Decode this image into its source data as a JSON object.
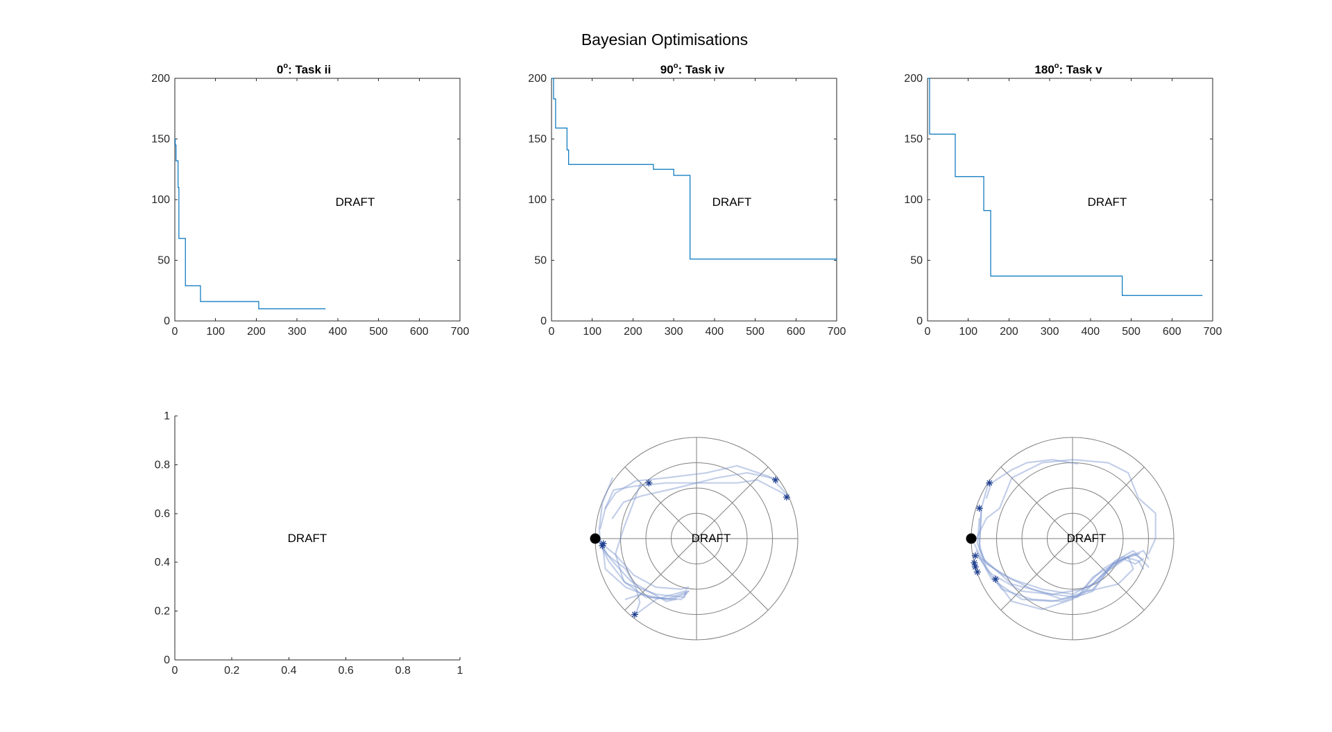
{
  "figure": {
    "title": "Bayesian Optimisations",
    "watermark": "DRAFT",
    "colors": {
      "line": "#0072BD",
      "trajectory": "#7A95CF",
      "marker": "#1F3F8F",
      "axes": "#262626",
      "start_dot": "#000000"
    }
  },
  "chart_data": [
    {
      "type": "line",
      "title_angle": "0",
      "title_task": ": Task ii",
      "xlim": [
        0,
        700
      ],
      "ylim": [
        0,
        200
      ],
      "xticks": [
        0,
        100,
        200,
        300,
        400,
        500,
        600,
        700
      ],
      "yticks": [
        0,
        50,
        100,
        150,
        200
      ],
      "step": true,
      "x": [
        0,
        1,
        3,
        8,
        10,
        26,
        63,
        206,
        370
      ],
      "y": [
        150,
        145,
        132,
        110,
        68,
        29,
        16,
        10,
        10
      ]
    },
    {
      "type": "line",
      "title_angle": "90",
      "title_task": ": Task iv",
      "xlim": [
        0,
        700
      ],
      "ylim": [
        0,
        200
      ],
      "xticks": [
        0,
        100,
        200,
        300,
        400,
        500,
        600,
        700
      ],
      "yticks": [
        0,
        50,
        100,
        150,
        200
      ],
      "step": true,
      "x": [
        0,
        5,
        10,
        38,
        42,
        250,
        300,
        340,
        700
      ],
      "y": [
        200,
        183,
        159,
        141,
        129,
        125,
        120,
        51,
        50
      ]
    },
    {
      "type": "line",
      "title_angle": "180",
      "title_task": ": Task v",
      "xlim": [
        0,
        700
      ],
      "ylim": [
        0,
        200
      ],
      "xticks": [
        0,
        100,
        200,
        300,
        400,
        500,
        600,
        700
      ],
      "yticks": [
        0,
        50,
        100,
        150,
        200
      ],
      "step": true,
      "x": [
        0,
        5,
        68,
        138,
        155,
        478,
        675
      ],
      "y": [
        200,
        154,
        119,
        91,
        37,
        21,
        21
      ]
    },
    {
      "type": "line",
      "xlim": [
        0,
        1
      ],
      "ylim": [
        0,
        1
      ],
      "xticks": [
        0,
        0.2,
        0.4,
        0.6,
        0.8,
        1
      ],
      "yticks": [
        0,
        0.2,
        0.4,
        0.6,
        0.8,
        1
      ],
      "xtick_labels": [
        "0",
        "0.2",
        "0.4",
        "0.6",
        "0.8",
        "1"
      ],
      "ytick_labels": [
        "0",
        "0.2",
        "0.4",
        "0.6",
        "0.8",
        "1"
      ],
      "x": [],
      "y": []
    },
    {
      "type": "polar-scatter",
      "start": [
        -1,
        0
      ],
      "rlim": [
        0,
        1
      ],
      "rings": [
        0.25,
        0.5,
        0.75,
        1
      ],
      "spokes_deg": [
        0,
        45,
        90,
        135
      ],
      "trajectories": [
        [
          [
            -0.83,
            0.6
          ],
          [
            -0.93,
            0.35
          ],
          [
            -0.96,
            0.1
          ],
          [
            -0.95,
            -0.05
          ],
          [
            -0.87,
            -0.22
          ],
          [
            -0.7,
            -0.44
          ],
          [
            -0.4,
            -0.55
          ],
          [
            -0.12,
            -0.58
          ],
          [
            -0.1,
            -0.5
          ]
        ],
        [
          [
            -0.96,
            -0.03
          ],
          [
            -0.85,
            -0.2
          ],
          [
            -0.65,
            -0.42
          ],
          [
            -0.3,
            -0.62
          ],
          [
            -0.2,
            -0.6
          ]
        ],
        [
          [
            -0.97,
            -0.02
          ],
          [
            -0.88,
            -0.16
          ],
          [
            -0.7,
            -0.3
          ],
          [
            -0.6,
            -0.48
          ],
          [
            -0.56,
            -0.63
          ],
          [
            -0.6,
            -0.75
          ],
          [
            -0.4,
            -0.6
          ],
          [
            -0.12,
            -0.52
          ]
        ],
        [
          [
            -0.55,
            0.55
          ],
          [
            -0.72,
            0.1
          ],
          [
            -0.8,
            -0.15
          ],
          [
            -0.72,
            -0.42
          ],
          [
            -0.5,
            -0.58
          ],
          [
            -0.15,
            -0.6
          ],
          [
            -0.08,
            -0.52
          ]
        ],
        [
          [
            -0.95,
            0.0
          ],
          [
            -0.92,
            -0.12
          ],
          [
            -0.9,
            -0.3
          ],
          [
            -0.7,
            -0.48
          ],
          [
            -0.45,
            -0.58
          ],
          [
            -0.25,
            -0.6
          ],
          [
            -0.1,
            -0.54
          ]
        ],
        [
          [
            -0.95,
            -0.04
          ],
          [
            -0.8,
            -0.16
          ],
          [
            -0.62,
            -0.36
          ],
          [
            -0.4,
            -0.48
          ],
          [
            -0.15,
            -0.5
          ],
          [
            -0.08,
            -0.48
          ]
        ],
        [
          [
            -0.7,
            -0.6
          ],
          [
            -0.55,
            -0.55
          ],
          [
            -0.3,
            -0.6
          ],
          [
            -0.08,
            -0.52
          ]
        ],
        [
          [
            -0.83,
            0.2
          ],
          [
            -0.72,
            0.36
          ],
          [
            -0.55,
            0.42
          ],
          [
            -0.2,
            0.5
          ],
          [
            0.2,
            0.6
          ],
          [
            0.5,
            0.65
          ],
          [
            0.74,
            0.6
          ],
          [
            0.88,
            0.45
          ]
        ],
        [
          [
            -0.9,
            0.3
          ],
          [
            -0.8,
            0.45
          ],
          [
            -0.6,
            0.57
          ],
          [
            -0.3,
            0.6
          ],
          [
            0.1,
            0.65
          ],
          [
            0.4,
            0.72
          ],
          [
            0.7,
            0.62
          ],
          [
            0.78,
            0.58
          ]
        ],
        [
          [
            -0.95,
            0.1
          ],
          [
            -0.9,
            0.3
          ],
          [
            -0.82,
            0.48
          ],
          [
            -0.6,
            0.52
          ],
          [
            -0.3,
            0.55
          ],
          [
            0.05,
            0.55
          ],
          [
            0.4,
            0.55
          ],
          [
            0.6,
            0.58
          ],
          [
            0.85,
            0.45
          ],
          [
            0.9,
            0.4
          ]
        ]
      ],
      "markers": [
        [
          -0.47,
          0.55
        ],
        [
          0.78,
          0.58
        ],
        [
          0.89,
          0.41
        ],
        [
          -0.92,
          -0.05
        ],
        [
          -0.93,
          -0.07
        ],
        [
          -0.61,
          -0.75
        ]
      ]
    },
    {
      "type": "polar-scatter",
      "start": [
        -1,
        0
      ],
      "rlim": [
        0,
        1
      ],
      "rings": [
        0.25,
        0.5,
        0.75,
        1
      ],
      "spokes_deg": [
        0,
        45,
        90,
        135
      ],
      "trajectories": [
        [
          [
            -0.83,
            0.55
          ],
          [
            -0.9,
            0.3
          ],
          [
            -0.92,
            -0.05
          ],
          [
            -0.88,
            -0.2
          ],
          [
            -0.6,
            -0.45
          ],
          [
            -0.2,
            -0.55
          ],
          [
            0.05,
            -0.58
          ],
          [
            0.2,
            -0.38
          ],
          [
            0.5,
            -0.2
          ],
          [
            0.62,
            -0.25
          ],
          [
            0.7,
            -0.2
          ]
        ],
        [
          [
            -0.9,
            0.3
          ],
          [
            -0.92,
            -0.1
          ],
          [
            -0.85,
            -0.3
          ],
          [
            -0.7,
            -0.5
          ],
          [
            -0.4,
            -0.6
          ],
          [
            -0.1,
            -0.62
          ],
          [
            0.2,
            -0.52
          ],
          [
            0.4,
            -0.25
          ],
          [
            0.6,
            -0.15
          ],
          [
            0.68,
            -0.2
          ]
        ],
        [
          [
            -0.94,
            -0.17
          ],
          [
            -0.8,
            -0.35
          ],
          [
            -0.5,
            -0.52
          ],
          [
            -0.2,
            -0.55
          ],
          [
            0.1,
            -0.5
          ],
          [
            0.3,
            -0.3
          ],
          [
            0.5,
            -0.18
          ],
          [
            0.65,
            -0.22
          ],
          [
            0.7,
            -0.3
          ]
        ],
        [
          [
            -0.76,
            -0.4
          ],
          [
            -0.6,
            -0.62
          ],
          [
            -0.3,
            -0.7
          ],
          [
            0.0,
            -0.6
          ],
          [
            0.2,
            -0.45
          ],
          [
            0.4,
            -0.25
          ],
          [
            0.55,
            -0.18
          ],
          [
            0.6,
            -0.3
          ],
          [
            0.45,
            -0.45
          ],
          [
            0.15,
            -0.52
          ]
        ],
        [
          [
            -0.95,
            0.0
          ],
          [
            -0.85,
            0.2
          ],
          [
            -0.72,
            0.3
          ],
          [
            -0.6,
            0.6
          ],
          [
            -0.3,
            0.75
          ],
          [
            0.0,
            0.78
          ],
          [
            0.35,
            0.75
          ],
          [
            0.55,
            0.65
          ],
          [
            0.65,
            0.4
          ],
          [
            0.82,
            0.25
          ],
          [
            0.82,
            0.0
          ],
          [
            0.75,
            -0.15
          ]
        ],
        [
          [
            -0.97,
            -0.05
          ],
          [
            -0.9,
            -0.2
          ],
          [
            -0.7,
            -0.35
          ],
          [
            -0.4,
            -0.5
          ],
          [
            -0.1,
            -0.6
          ],
          [
            0.2,
            -0.5
          ],
          [
            0.35,
            -0.32
          ],
          [
            0.55,
            -0.18
          ],
          [
            0.7,
            -0.12
          ],
          [
            0.75,
            -0.2
          ]
        ],
        [
          [
            -0.95,
            -0.12
          ],
          [
            -0.8,
            -0.4
          ],
          [
            -0.5,
            -0.6
          ],
          [
            -0.2,
            -0.62
          ],
          [
            0.1,
            -0.55
          ],
          [
            0.3,
            -0.35
          ],
          [
            0.5,
            -0.2
          ],
          [
            0.66,
            -0.15
          ]
        ],
        [
          [
            -0.85,
            0.4
          ],
          [
            -0.8,
            0.55
          ],
          [
            -0.6,
            0.68
          ],
          [
            -0.45,
            0.75
          ],
          [
            -0.2,
            0.78
          ],
          [
            0.05,
            0.74
          ]
        ],
        [
          [
            -0.92,
            0.2
          ],
          [
            -0.94,
            -0.05
          ],
          [
            -0.85,
            -0.25
          ],
          [
            -0.6,
            -0.4
          ],
          [
            -0.3,
            -0.5
          ],
          [
            0.0,
            -0.55
          ],
          [
            0.25,
            -0.42
          ],
          [
            0.42,
            -0.22
          ],
          [
            0.6,
            -0.12
          ],
          [
            0.75,
            -0.28
          ]
        ]
      ],
      "markers": [
        [
          -0.82,
          0.55
        ],
        [
          -0.92,
          0.3
        ],
        [
          -0.96,
          -0.17
        ],
        [
          -0.97,
          -0.24
        ],
        [
          -0.96,
          -0.28
        ],
        [
          -0.94,
          -0.33
        ],
        [
          -0.76,
          -0.4
        ]
      ]
    }
  ]
}
